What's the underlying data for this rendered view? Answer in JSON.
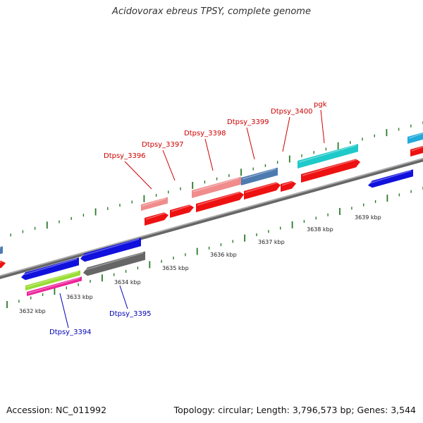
{
  "title": "Acidovorax ebreus TPSY, complete genome",
  "footer": {
    "accession": "Accession: NC_011992",
    "stats": "Topology: circular; Length: 3,796,573 bp; Genes: 3,544"
  },
  "kbp_labels": [
    "3632 kbp",
    "3633 kbp",
    "3634 kbp",
    "3635 kbp",
    "3636 kbp",
    "3637 kbp",
    "3638 kbp",
    "3639 kbp"
  ],
  "gene_labels_top": [
    "Dtpsy_3396",
    "Dtpsy_3397",
    "Dtpsy_3398",
    "Dtpsy_3399",
    "Dtpsy_3400",
    "pgk"
  ],
  "gene_labels_bottom": [
    "Dtpsy_3394",
    "Dtpsy_3395"
  ],
  "colors": {
    "forward_gene": "#ee1111",
    "forward_gene_faded": "#f08c8c",
    "forward_gene_alt": "#4d7bb0",
    "cyan_feature": "#1ec9c9",
    "reverse_gene": "#1111dd",
    "reverse_gene_gray": "#666666",
    "lime_feature": "#99dd33",
    "magenta_feature": "#ee2299",
    "backbone": "#888888",
    "tick": "#2a7a2a",
    "top_label": "#cc0000",
    "bottom_label": "#0000bb"
  }
}
